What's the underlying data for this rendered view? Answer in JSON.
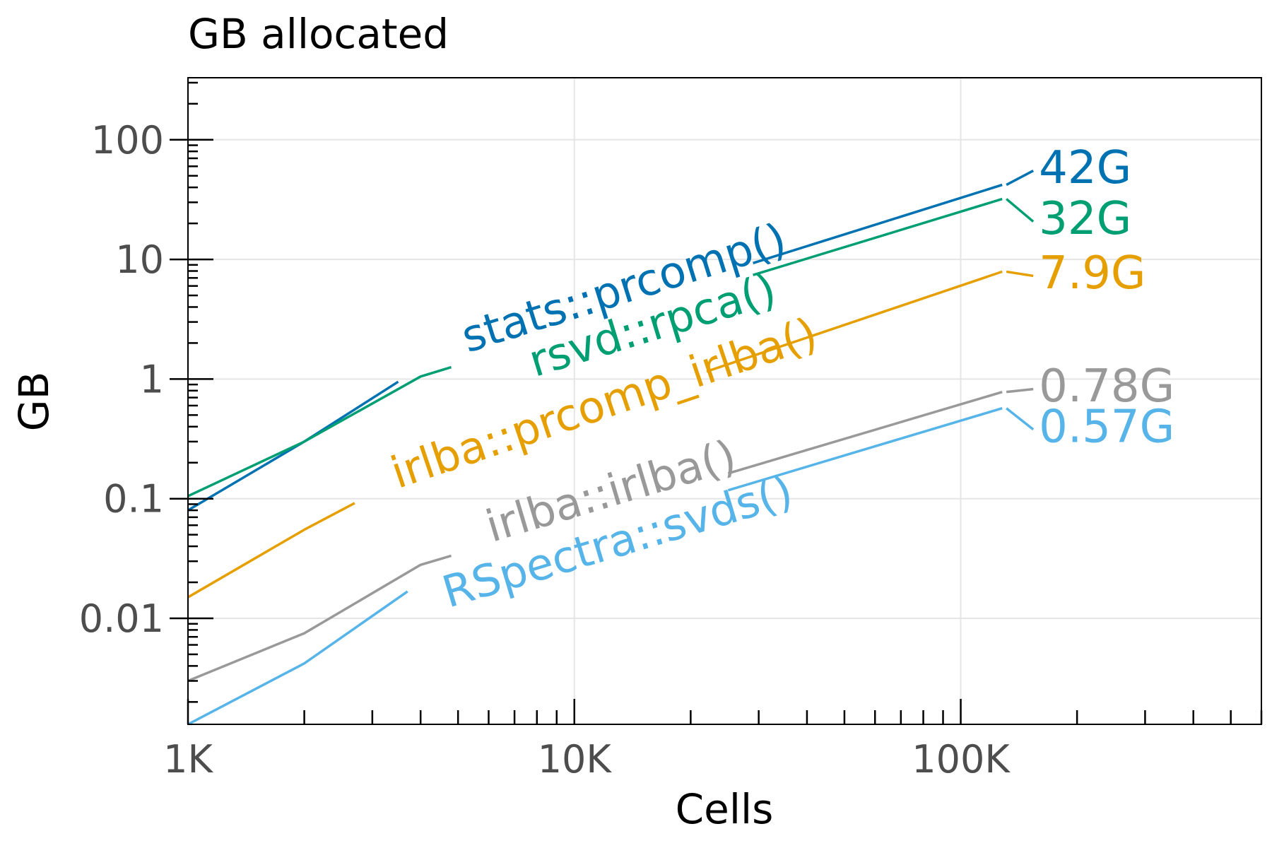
{
  "chart_data": {
    "type": "line",
    "title": "GB allocated",
    "xlabel": "Cells",
    "ylabel": "GB",
    "x_scale": "log",
    "y_scale": "log",
    "xlim": [
      1000,
      600000
    ],
    "ylim": [
      0.0013,
      330
    ],
    "grid": true,
    "x_ticks": [
      {
        "value": 1000,
        "label": "1K"
      },
      {
        "value": 10000,
        "label": "10K"
      },
      {
        "value": 100000,
        "label": "100K"
      }
    ],
    "y_ticks": [
      {
        "value": 0.01,
        "label": "0.01"
      },
      {
        "value": 0.1,
        "label": "0.1"
      },
      {
        "value": 1,
        "label": "1"
      },
      {
        "value": 10,
        "label": "10"
      },
      {
        "value": 100,
        "label": "100"
      }
    ],
    "series": [
      {
        "name": "stats::prcomp()",
        "color": "#0072B2",
        "end_label": "42G",
        "x": [
          1000,
          2000,
          4000,
          128000
        ],
        "y": [
          0.08,
          0.3,
          1.25,
          42
        ]
      },
      {
        "name": "rsvd::rpca()",
        "color": "#009E73",
        "end_label": "32G",
        "x": [
          1000,
          2000,
          4000,
          128000
        ],
        "y": [
          0.105,
          0.3,
          1.05,
          32
        ]
      },
      {
        "name": "irlba::prcomp_irlba()",
        "color": "#E69F00",
        "end_label": "7.9G",
        "x": [
          1000,
          2000,
          4000,
          128000
        ],
        "y": [
          0.015,
          0.055,
          0.18,
          7.9
        ]
      },
      {
        "name": "irlba::irlba()",
        "color": "#999999",
        "end_label": "0.78G",
        "x": [
          1000,
          2000,
          4000,
          128000
        ],
        "y": [
          0.003,
          0.0075,
          0.028,
          0.78
        ]
      },
      {
        "name": "RSpectra::svds()",
        "color": "#56B4E9",
        "end_label": "0.57G",
        "x": [
          1000,
          2000,
          4000,
          128000
        ],
        "y": [
          0.0013,
          0.0042,
          0.02,
          0.57
        ]
      }
    ]
  }
}
